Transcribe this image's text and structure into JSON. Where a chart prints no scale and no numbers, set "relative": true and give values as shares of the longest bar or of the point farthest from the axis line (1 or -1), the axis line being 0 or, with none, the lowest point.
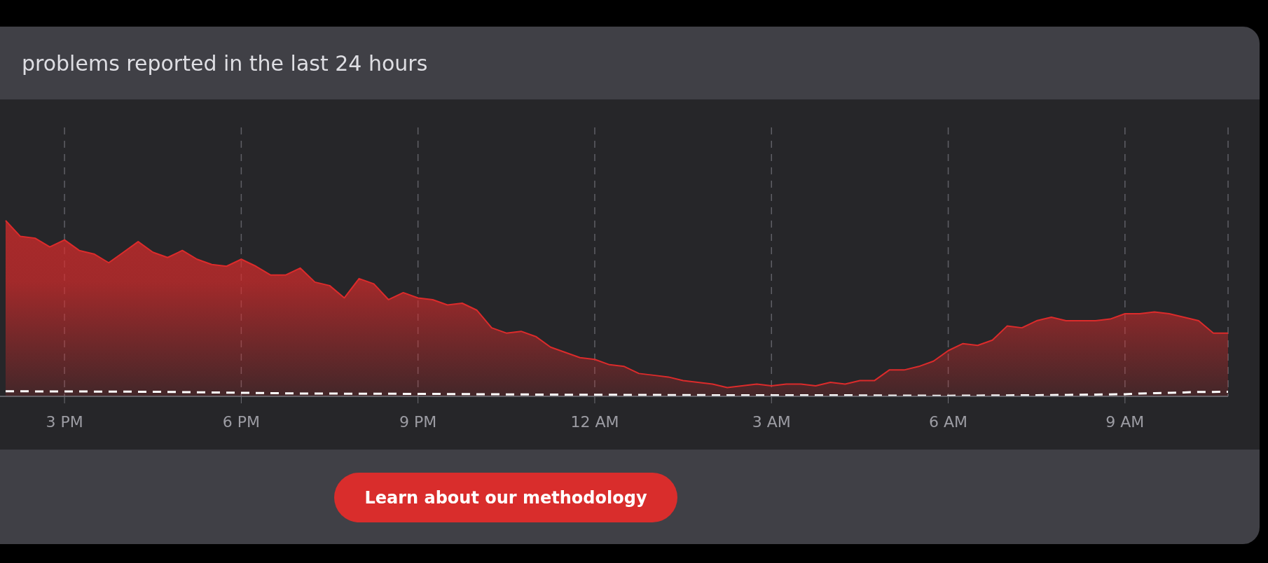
{
  "chart_data": {
    "type": "area",
    "title": "problems reported in the last 24 hours",
    "annotations": [
      "Learn about our methodology"
    ],
    "relative": true,
    "grid": "x",
    "categories": [
      null,
      null,
      null,
      null,
      "3 PM",
      null,
      null,
      null,
      null,
      null,
      null,
      null,
      null,
      null,
      null,
      null,
      "6 PM",
      null,
      null,
      null,
      null,
      null,
      null,
      null,
      null,
      null,
      null,
      null,
      "9 PM",
      null,
      null,
      null,
      null,
      null,
      null,
      null,
      null,
      null,
      null,
      null,
      "12 AM",
      null,
      null,
      null,
      null,
      null,
      null,
      null,
      null,
      null,
      null,
      null,
      "3 AM",
      null,
      null,
      null,
      null,
      null,
      null,
      null,
      null,
      null,
      null,
      null,
      "6 AM",
      null,
      null,
      null,
      null,
      null,
      null,
      null,
      null,
      null,
      null,
      null,
      "9 AM",
      null,
      null,
      null,
      null,
      null,
      null,
      null
    ],
    "series": [
      {
        "color": "#dc2b2b",
        "values": [
          1,
          0.91,
          0.9,
          0.85,
          0.89,
          0.83,
          0.81,
          0.76,
          0.82,
          0.88,
          0.82,
          0.79,
          0.83,
          0.78,
          0.75,
          0.74,
          0.78,
          0.74,
          0.69,
          0.69,
          0.73,
          0.65,
          0.63,
          0.56,
          0.67,
          0.64,
          0.55,
          0.59,
          0.56,
          0.55,
          0.52,
          0.53,
          0.49,
          0.39,
          0.36,
          0.37,
          0.34,
          0.28,
          0.25,
          0.22,
          0.21,
          0.18,
          0.17,
          0.13,
          0.12,
          0.11,
          0.09,
          0.08,
          0.07,
          0.05,
          0.06,
          0.07,
          0.06,
          0.07,
          0.07,
          0.06,
          0.08,
          0.07,
          0.09,
          0.09,
          0.15,
          0.15,
          0.17,
          0.2,
          0.26,
          0.3,
          0.29,
          0.32,
          0.4,
          0.39,
          0.43,
          0.45,
          0.43,
          0.43,
          0.43,
          0.44,
          0.47,
          0.47,
          0.48,
          0.47,
          0.45,
          0.43,
          0.36,
          0.36
        ]
      },
      {
        "type": "line",
        "color": "#ffffff",
        "line_style": "dashed",
        "values": [
          0.029,
          0.029,
          0.028,
          0.028,
          0.028,
          0.028,
          0.027,
          0.027,
          0.027,
          0.026,
          0.026,
          0.025,
          0.024,
          0.023,
          0.022,
          0.021,
          0.02,
          0.019,
          0.018,
          0.017,
          0.016,
          0.016,
          0.016,
          0.015,
          0.015,
          0.015,
          0.015,
          0.014,
          0.014,
          0.014,
          0.013,
          0.013,
          0.012,
          0.012,
          0.011,
          0.011,
          0.01,
          0.01,
          0.009,
          0.009,
          0.009,
          0.009,
          0.008,
          0.008,
          0.008,
          0.007,
          0.007,
          0.007,
          0.006,
          0.006,
          0.006,
          0.006,
          0.006,
          0.006,
          0.006,
          0.006,
          0.006,
          0.006,
          0.005,
          0.005,
          0.004,
          0.004,
          0.004,
          0.003,
          0.003,
          0.004,
          0.004,
          0.005,
          0.005,
          0.006,
          0.006,
          0.007,
          0.008,
          0.009,
          0.01,
          0.011,
          0.012,
          0.016,
          0.018,
          0.02,
          0.022,
          0.025,
          0.025,
          0.026
        ]
      }
    ]
  }
}
